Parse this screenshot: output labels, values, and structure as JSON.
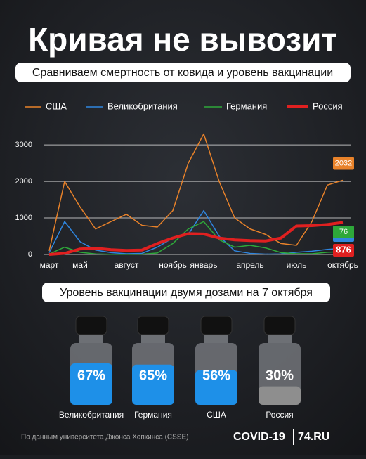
{
  "header": {
    "title": "Кривая не вывозит",
    "subtitle": "Сравниваем смертность от ковида и уровень вакцинации"
  },
  "footer": {
    "source": "По данным университета Джонса Хопкинса (CSSE)",
    "logo": [
      "COVID-19",
      "74.RU"
    ]
  },
  "chart_data": [
    {
      "type": "line",
      "categories": [
        "март",
        null,
        "май",
        null,
        null,
        "август",
        null,
        null,
        "ноябрь",
        null,
        "январь",
        null,
        null,
        "апрель",
        null,
        null,
        "июль",
        null,
        null,
        "октябрь"
      ],
      "ylim": [
        0,
        3600
      ],
      "yticks": [
        0,
        1000,
        2000,
        3000
      ],
      "grid": true,
      "series": [
        {
          "name": "США",
          "color": "#e8822a",
          "values": [
            100,
            2000,
            1300,
            700,
            900,
            1100,
            800,
            750,
            1200,
            2500,
            3300,
            2000,
            1000,
            700,
            550,
            300,
            250,
            900,
            1900,
            2032
          ]
        },
        {
          "name": "Великобритания",
          "color": "#2f86e0",
          "values": [
            50,
            900,
            350,
            120,
            50,
            20,
            30,
            200,
            450,
            550,
            1200,
            500,
            100,
            30,
            10,
            15,
            60,
            90,
            140,
            166
          ]
        },
        {
          "name": "Германия",
          "color": "#2ea83a",
          "values": [
            10,
            200,
            60,
            15,
            5,
            5,
            8,
            40,
            300,
            700,
            900,
            400,
            200,
            250,
            180,
            50,
            20,
            20,
            60,
            76
          ]
        },
        {
          "name": "Россия",
          "color": "#e02020",
          "values": [
            0,
            30,
            150,
            170,
            130,
            110,
            120,
            300,
            450,
            570,
            560,
            450,
            400,
            380,
            370,
            450,
            780,
            790,
            820,
            876
          ]
        }
      ]
    },
    {
      "type": "vial",
      "title": "Уровень вакцинации двумя дозами на 7 октября",
      "categories": [
        "Великобритания",
        "Германия",
        "США",
        "Россия"
      ],
      "values": [
        67,
        65,
        56,
        30
      ],
      "value_labels": [
        "67%",
        "65%",
        "56%",
        "30%"
      ],
      "colors": [
        "#1e90e8",
        "#1e90e8",
        "#1e90e8",
        "#8e8e8e"
      ]
    }
  ]
}
